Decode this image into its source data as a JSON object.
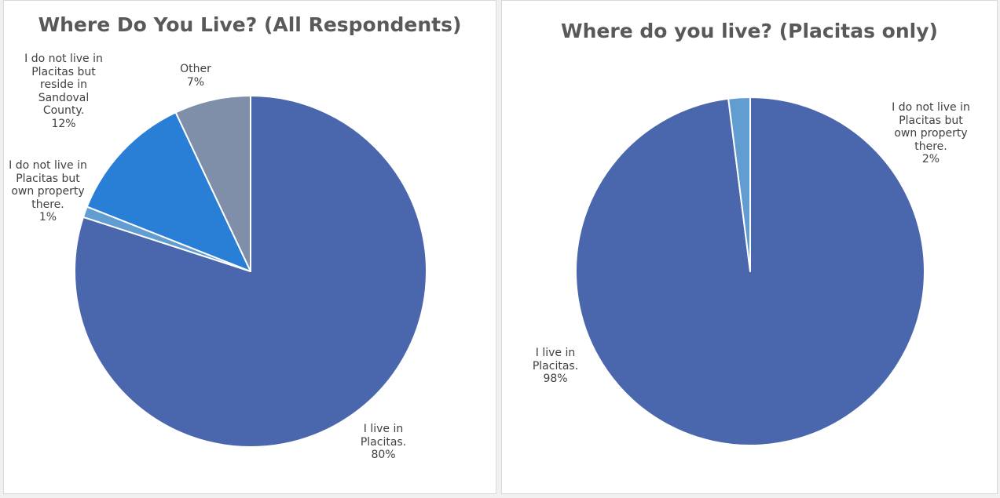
{
  "colors": {
    "background": "#f0f0f0",
    "panel": "#ffffff",
    "title": "#595959",
    "label": "#404040"
  },
  "chart_data": [
    {
      "type": "pie",
      "title": "Where Do You Live? (All Respondents)",
      "slices": [
        {
          "label": "I live in Placitas.",
          "label_lines": [
            "I live in",
            "Placitas."
          ],
          "value": 80,
          "value_label": "80%",
          "color": "#4a66ac"
        },
        {
          "label": "I do not live in Placitas but own property there.",
          "label_lines": [
            "I do not live in",
            "Placitas but",
            "own property",
            "there."
          ],
          "value": 1,
          "value_label": "1%",
          "color": "#629dd1"
        },
        {
          "label": "I do not live in Placitas but reside in Sandoval County.",
          "label_lines": [
            "I do not live in",
            "Placitas but",
            "reside in",
            "Sandoval",
            "County."
          ],
          "value": 12,
          "value_label": "12%",
          "color": "#297fd5"
        },
        {
          "label": "Other",
          "label_lines": [
            "Other"
          ],
          "value": 7,
          "value_label": "7%",
          "color": "#7f8fa9"
        }
      ]
    },
    {
      "type": "pie",
      "title": "Where do you live? (Placitas only)",
      "slices": [
        {
          "label": "I live in Placitas.",
          "label_lines": [
            "I live in",
            "Placitas."
          ],
          "value": 98,
          "value_label": "98%",
          "color": "#4a66ac"
        },
        {
          "label": "I do not live in Placitas but own property there.",
          "label_lines": [
            "I do not live in",
            "Placitas but",
            "own property",
            "there."
          ],
          "value": 2,
          "value_label": "2%",
          "color": "#629dd1"
        }
      ]
    }
  ]
}
